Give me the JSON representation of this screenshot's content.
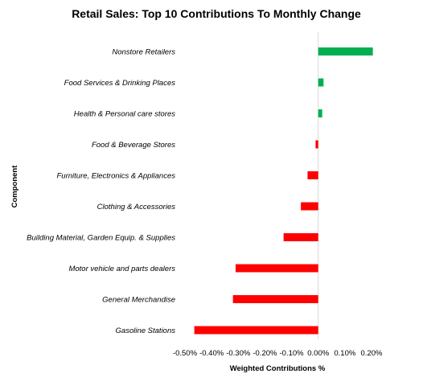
{
  "chart_data": {
    "type": "bar",
    "orientation": "horizontal",
    "title": "Retail Sales: Top 10 Contributions To Monthly Change",
    "xlabel": "Weighted Contributions %",
    "ylabel": "Component",
    "categories": [
      "Nonstore Retailers",
      "Food Services & Drinking Places",
      "Health & Personal care stores",
      "Food & Beverage Stores",
      "Furniture,  Electronics & Appliances",
      "Clothing & Accessories",
      "Building Material, Garden Equip. & Supplies",
      "Motor vehicle and parts dealers",
      "General Merchandise",
      "Gasoline Stations"
    ],
    "values": [
      0.205,
      0.02,
      0.015,
      -0.01,
      -0.04,
      -0.065,
      -0.13,
      -0.31,
      -0.32,
      -0.465
    ],
    "xlim": [
      -0.5,
      0.2
    ],
    "xticks": [
      -0.5,
      -0.4,
      -0.3,
      -0.2,
      -0.1,
      0.0,
      0.1,
      0.2
    ],
    "xtick_labels": [
      "-0.50%",
      "-0.40%",
      "-0.30%",
      "-0.20%",
      "-0.10%",
      "0.00%",
      "0.10%",
      "0.20%"
    ],
    "grid": false,
    "legend": "none",
    "colors": {
      "positive": "#00b050",
      "negative": "#ff0000",
      "zero_line": "#d9d9d9"
    }
  }
}
